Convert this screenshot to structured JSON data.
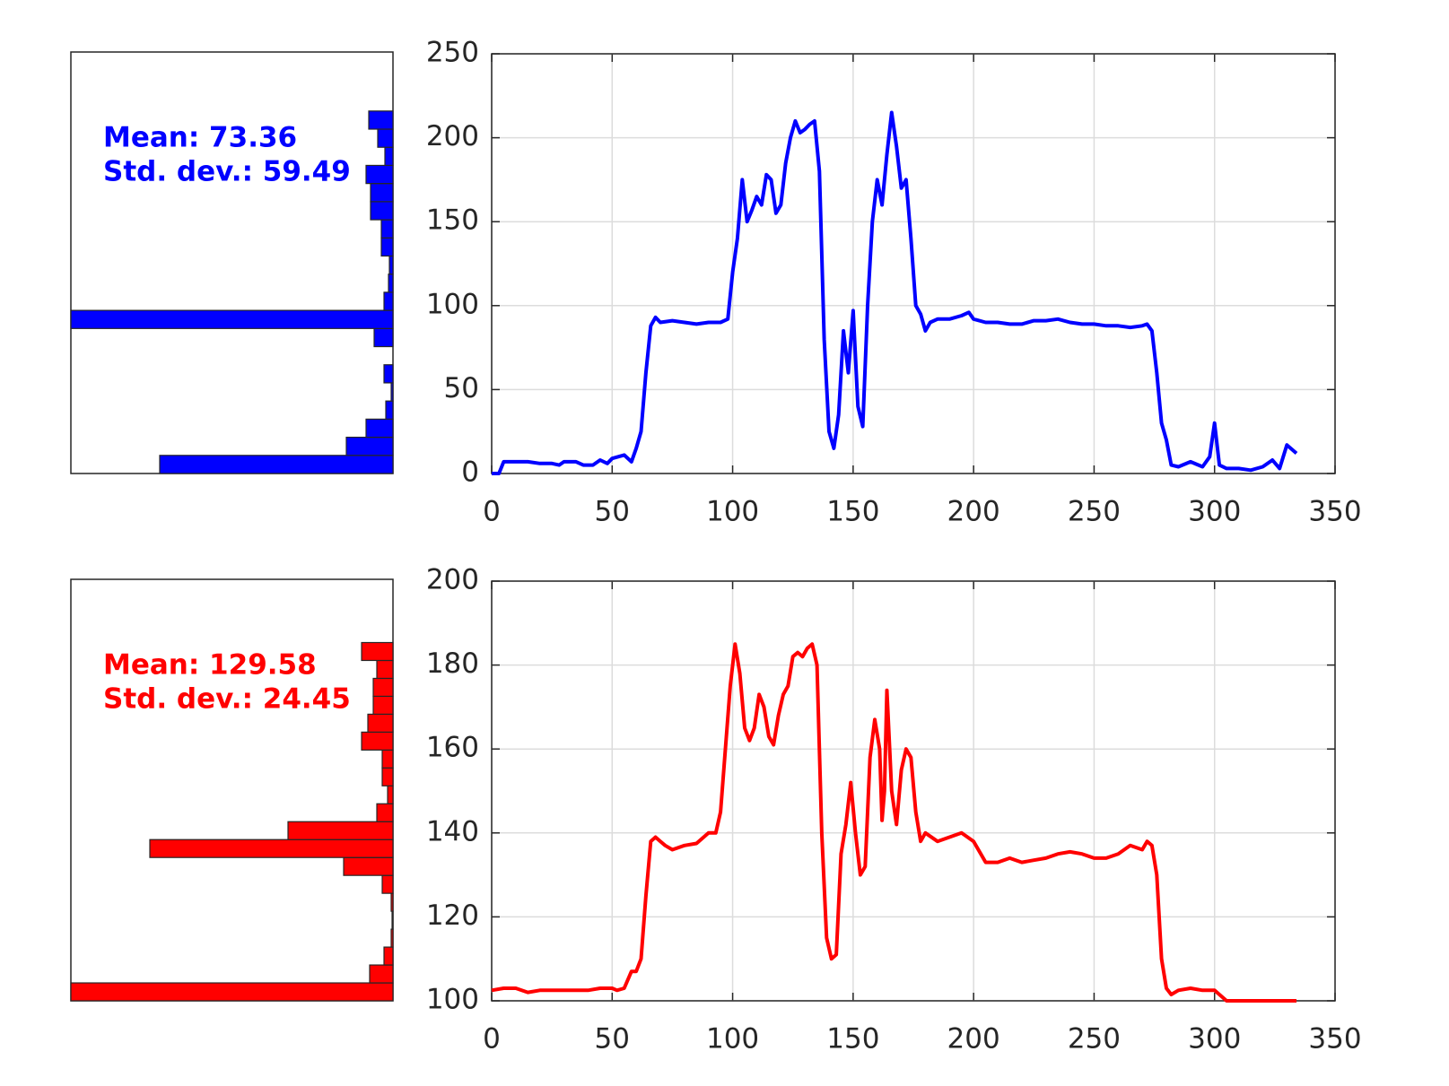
{
  "chart_data": [
    {
      "type": "histogram",
      "orientation": "horizontal",
      "color": "#0000ff",
      "annotations": [
        "Mean: 73.36",
        "Std. dev.: 59.49"
      ],
      "bins": [
        0,
        10.75,
        21.5,
        32.25,
        43,
        53.75,
        64.5,
        75.25,
        86,
        96.75,
        107.5,
        118.25,
        129,
        139.75,
        150.5,
        161.25,
        172,
        182.75,
        193.5,
        204.25,
        215
      ],
      "counts": [
        260,
        52,
        30,
        8,
        2,
        10,
        0,
        21,
        359,
        10,
        5,
        4,
        13,
        13,
        25,
        25,
        30,
        9,
        17,
        27
      ],
      "xlim": [
        0,
        359
      ],
      "ylim": [
        0,
        250
      ]
    },
    {
      "type": "line",
      "color": "#0000ff",
      "grid": true,
      "x": [
        0,
        3,
        5,
        10,
        15,
        20,
        25,
        28,
        30,
        35,
        38,
        42,
        45,
        48,
        50,
        55,
        58,
        60,
        62,
        64,
        66,
        68,
        70,
        75,
        80,
        85,
        90,
        95,
        98,
        100,
        102,
        104,
        106,
        108,
        110,
        112,
        114,
        116,
        118,
        120,
        122,
        124,
        126,
        128,
        130,
        132,
        134,
        136,
        138,
        140,
        142,
        144,
        146,
        148,
        150,
        152,
        154,
        156,
        158,
        160,
        162,
        164,
        166,
        168,
        170,
        172,
        174,
        176,
        178,
        180,
        182,
        185,
        190,
        195,
        198,
        200,
        205,
        210,
        215,
        220,
        225,
        230,
        235,
        240,
        245,
        250,
        255,
        260,
        265,
        270,
        272,
        274,
        276,
        278,
        280,
        282,
        285,
        290,
        295,
        298,
        300,
        302,
        305,
        310,
        315,
        320,
        324,
        327,
        330,
        334
      ],
      "values": [
        0,
        0,
        7,
        7,
        7,
        6,
        6,
        5,
        7,
        7,
        5,
        5,
        8,
        6,
        9,
        11,
        7,
        15,
        25,
        60,
        88,
        93,
        90,
        91,
        90,
        89,
        90,
        90,
        92,
        120,
        140,
        175,
        150,
        157,
        165,
        160,
        178,
        175,
        155,
        160,
        185,
        200,
        210,
        203,
        205,
        208,
        210,
        180,
        80,
        25,
        15,
        35,
        85,
        60,
        97,
        40,
        28,
        100,
        150,
        175,
        160,
        190,
        215,
        195,
        170,
        175,
        140,
        100,
        95,
        85,
        90,
        92,
        92,
        94,
        96,
        92,
        90,
        90,
        89,
        89,
        91,
        91,
        92,
        90,
        89,
        89,
        88,
        88,
        87,
        88,
        89,
        85,
        60,
        30,
        20,
        5,
        4,
        7,
        4,
        10,
        30,
        5,
        3,
        3,
        2,
        4,
        8,
        3,
        17,
        12
      ],
      "xlim": [
        0,
        350
      ],
      "xticks": [
        0,
        50,
        100,
        150,
        200,
        250,
        300,
        350
      ],
      "ylim": [
        0,
        250
      ],
      "yticks": [
        0,
        50,
        100,
        150,
        200,
        250
      ]
    },
    {
      "type": "histogram",
      "orientation": "horizontal",
      "color": "#ff0000",
      "annotations": [
        "Mean: 129.58",
        "Std. dev.: 24.45"
      ],
      "bins": [
        100,
        104.25,
        108.5,
        112.75,
        117,
        121.25,
        125.5,
        129.75,
        134,
        138.25,
        142.5,
        146.75,
        151,
        155.25,
        159.5,
        163.75,
        168,
        172.25,
        176.5,
        180.75,
        185
      ],
      "counts": [
        359,
        26,
        10,
        2,
        1,
        2,
        12,
        55,
        271,
        117,
        18,
        6,
        12,
        12,
        35,
        28,
        22,
        22,
        18,
        35
      ],
      "xlim": [
        0,
        359
      ],
      "ylim": [
        100,
        200
      ]
    },
    {
      "type": "line",
      "color": "#ff0000",
      "grid": true,
      "x": [
        0,
        5,
        10,
        15,
        20,
        25,
        30,
        35,
        40,
        45,
        50,
        52,
        55,
        58,
        60,
        62,
        64,
        66,
        68,
        70,
        72,
        75,
        80,
        85,
        88,
        90,
        93,
        95,
        97,
        99,
        101,
        103,
        105,
        107,
        109,
        111,
        113,
        115,
        117,
        119,
        121,
        123,
        125,
        127,
        129,
        131,
        133,
        135,
        137,
        139,
        141,
        143,
        145,
        147,
        149,
        151,
        153,
        155,
        157,
        159,
        161,
        162,
        163,
        164,
        166,
        168,
        170,
        172,
        174,
        176,
        178,
        180,
        185,
        190,
        195,
        200,
        205,
        210,
        215,
        220,
        225,
        230,
        235,
        240,
        245,
        250,
        255,
        260,
        265,
        270,
        272,
        274,
        276,
        278,
        280,
        282,
        285,
        290,
        295,
        300,
        302,
        305,
        310,
        320,
        334
      ],
      "values": [
        102.5,
        103,
        103,
        102,
        102.5,
        102.5,
        102.5,
        102.5,
        102.5,
        103,
        103,
        102.5,
        103,
        107,
        107,
        110,
        125,
        138,
        139,
        138,
        137,
        136,
        137,
        137.5,
        139,
        140,
        140,
        145,
        160,
        175,
        185,
        178,
        165,
        162,
        165,
        173,
        170,
        163,
        161,
        168,
        173,
        175,
        182,
        183,
        182,
        184,
        185,
        180,
        140,
        115,
        110,
        111,
        135,
        142,
        152,
        140,
        130,
        132,
        158,
        167,
        160,
        143,
        150,
        174,
        150,
        142,
        155,
        160,
        158,
        145,
        138,
        140,
        138,
        139,
        140,
        138,
        133,
        133,
        134,
        133,
        133.5,
        134,
        135,
        135.5,
        135,
        134,
        134,
        135,
        137,
        136,
        138,
        137,
        130,
        110,
        103,
        101.5,
        102.5,
        103,
        102.5,
        102.5,
        101.5,
        100,
        100,
        100,
        100
      ],
      "xlim": [
        0,
        350
      ],
      "xticks": [
        0,
        50,
        100,
        150,
        200,
        250,
        300,
        350
      ],
      "ylim": [
        100,
        200
      ],
      "yticks": [
        100,
        120,
        140,
        160,
        180,
        200
      ]
    }
  ]
}
